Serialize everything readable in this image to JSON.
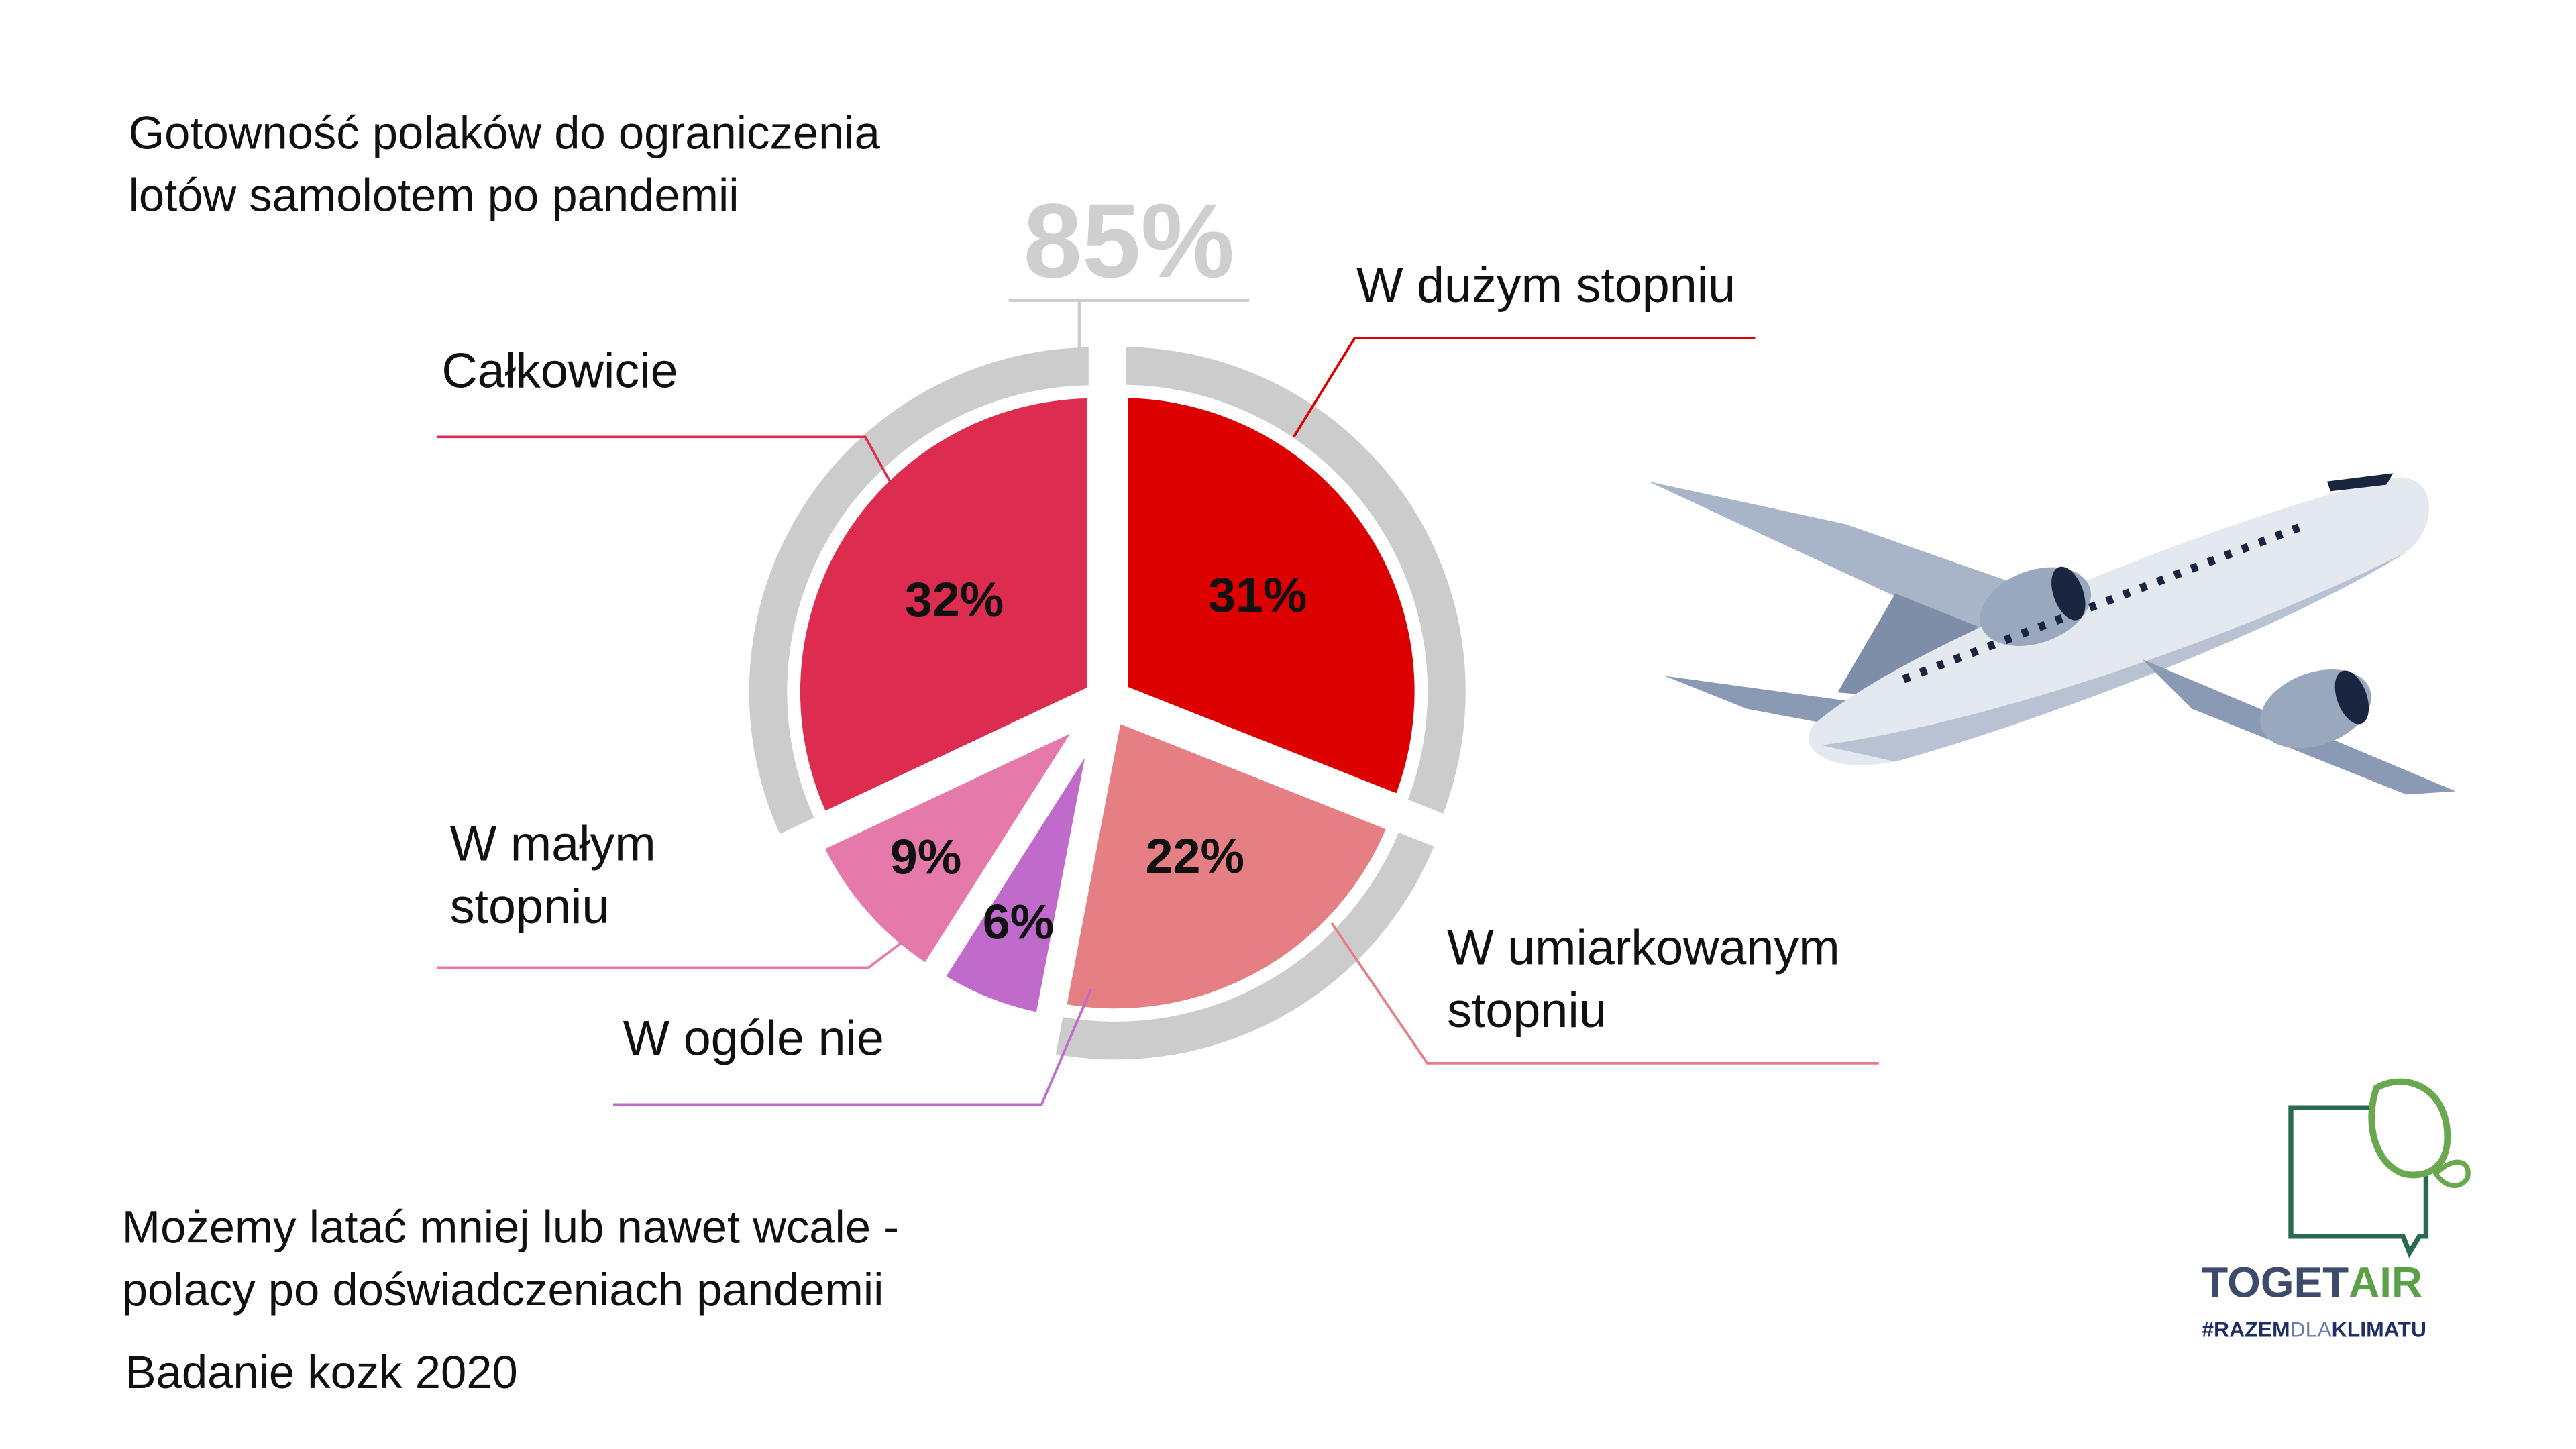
{
  "chart_data": {
    "type": "pie",
    "title": "Gotowność polaków do ograniczenia lotów samolotem po pandemii",
    "subtitle": "Możemy latać mniej lub nawet wcale - polacy po doświadczeniach pandemii",
    "source": "Badanie kozk 2020",
    "highlight_label": "85%",
    "categories": [
      "W dużym stopniu",
      "W umiarkowanym stopniu",
      "W ogóle nie",
      "W małym stopniu",
      "Całkowicie"
    ],
    "values": [
      31,
      22,
      6,
      9,
      32
    ],
    "value_labels": [
      "31%",
      "22%",
      "6%",
      "9%",
      "32%"
    ],
    "colors": [
      "#dc0000",
      "#e57f84",
      "#c06acc",
      "#e57aaa",
      "#dc2d50"
    ]
  },
  "logo": {
    "name": [
      "TOGET",
      "AIR"
    ],
    "tagline": [
      "#RAZEM",
      "DLA",
      "KLIMATU"
    ]
  }
}
